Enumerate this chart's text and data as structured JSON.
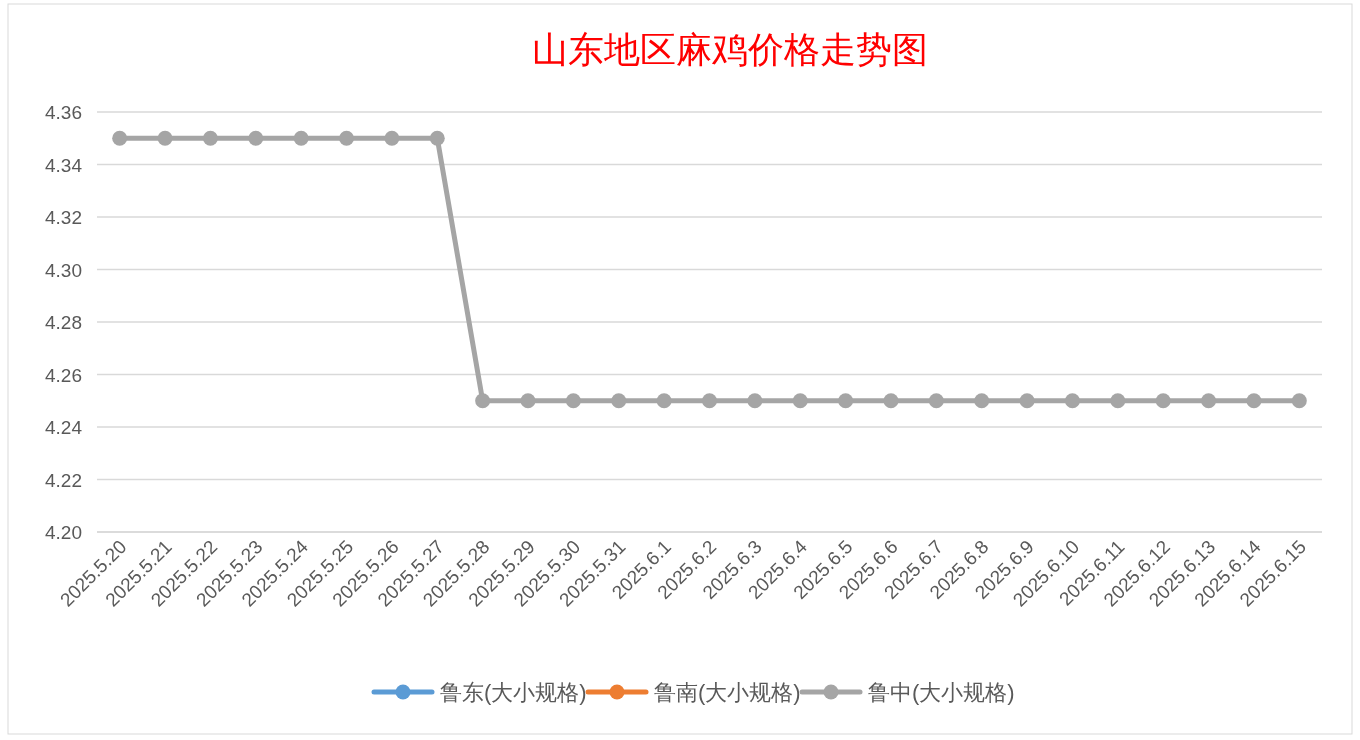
{
  "chart_data": {
    "type": "line",
    "title": "山东地区麻鸡价格走势图",
    "categories": [
      "2025.5.20",
      "2025.5.21",
      "2025.5.22",
      "2025.5.23",
      "2025.5.24",
      "2025.5.25",
      "2025.5.26",
      "2025.5.27",
      "2025.5.28",
      "2025.5.29",
      "2025.5.30",
      "2025.5.31",
      "2025.6.1",
      "2025.6.2",
      "2025.6.3",
      "2025.6.4",
      "2025.6.5",
      "2025.6.6",
      "2025.6.7",
      "2025.6.8",
      "2025.6.9",
      "2025.6.10",
      "2025.6.11",
      "2025.6.12",
      "2025.6.13",
      "2025.6.14",
      "2025.6.15"
    ],
    "series": [
      {
        "name": "鲁东(大小规格)",
        "color": "#5b9bd5",
        "values": [
          null,
          null,
          null,
          null,
          null,
          null,
          null,
          null,
          null,
          null,
          null,
          null,
          null,
          null,
          null,
          null,
          null,
          null,
          null,
          null,
          null,
          null,
          null,
          null,
          null,
          null,
          null
        ]
      },
      {
        "name": "鲁南(大小规格)",
        "color": "#ed7d31",
        "values": [
          null,
          null,
          null,
          null,
          null,
          null,
          null,
          null,
          null,
          null,
          null,
          null,
          null,
          null,
          null,
          null,
          null,
          null,
          null,
          null,
          null,
          null,
          null,
          null,
          null,
          null,
          null
        ]
      },
      {
        "name": "鲁中(大小规格)",
        "color": "#a5a5a5",
        "values": [
          4.35,
          4.35,
          4.35,
          4.35,
          4.35,
          4.35,
          4.35,
          4.35,
          4.25,
          4.25,
          4.25,
          4.25,
          4.25,
          4.25,
          4.25,
          4.25,
          4.25,
          4.25,
          4.25,
          4.25,
          4.25,
          4.25,
          4.25,
          4.25,
          4.25,
          4.25,
          4.25
        ]
      }
    ],
    "ylim": [
      4.2,
      4.36
    ],
    "yticks": [
      {
        "value": 4.2,
        "label": "4.20"
      },
      {
        "value": 4.22,
        "label": "4.22"
      },
      {
        "value": 4.24,
        "label": "4.24"
      },
      {
        "value": 4.26,
        "label": "4.26"
      },
      {
        "value": 4.28,
        "label": "4.28"
      },
      {
        "value": 4.3,
        "label": "4.30"
      },
      {
        "value": 4.32,
        "label": "4.32"
      },
      {
        "value": 4.34,
        "label": "4.34"
      },
      {
        "value": 4.36,
        "label": "4.36"
      }
    ],
    "grid": "y",
    "legend": "bottom",
    "marker": "circle",
    "line_style": "solid"
  }
}
